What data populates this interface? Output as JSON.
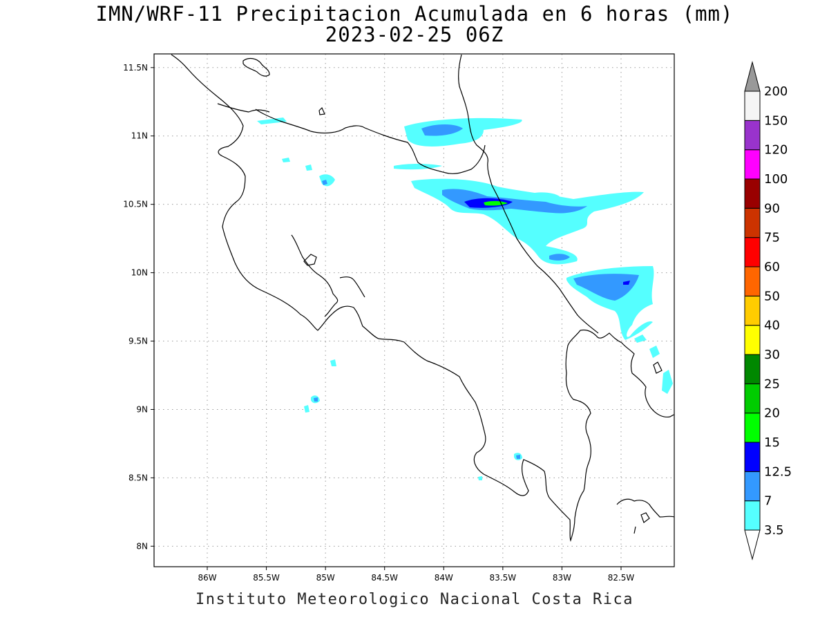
{
  "header": {
    "title": "IMN/WRF-11 Precipitacion Acumulada en 6 horas (mm)",
    "subtitle": "2023-02-25 06Z"
  },
  "footer": {
    "credit": "Instituto Meteorologico Nacional Costa Rica"
  },
  "map": {
    "lon_range": [
      -86.45,
      -82.05
    ],
    "lat_range": [
      7.85,
      11.6
    ],
    "lon_ticks": [
      {
        "value": -86.0,
        "label": "86W"
      },
      {
        "value": -85.5,
        "label": "85.5W"
      },
      {
        "value": -85.0,
        "label": "85W"
      },
      {
        "value": -84.5,
        "label": "84.5W"
      },
      {
        "value": -84.0,
        "label": "84W"
      },
      {
        "value": -83.5,
        "label": "83.5W"
      },
      {
        "value": -83.0,
        "label": "83W"
      },
      {
        "value": -82.5,
        "label": "82.5W"
      }
    ],
    "lat_ticks": [
      {
        "value": 11.5,
        "label": "11.5N"
      },
      {
        "value": 11.0,
        "label": "11N"
      },
      {
        "value": 10.5,
        "label": "10.5N"
      },
      {
        "value": 10.0,
        "label": "10N"
      },
      {
        "value": 9.5,
        "label": "9.5N"
      },
      {
        "value": 9.0,
        "label": "9N"
      },
      {
        "value": 8.5,
        "label": "8.5N"
      },
      {
        "value": 8.0,
        "label": "8N"
      }
    ],
    "grid": true,
    "grid_color": "#999999",
    "coast_color": "#000000"
  },
  "colorbar": {
    "levels": [
      "3.5",
      "7",
      "12.5",
      "15",
      "20",
      "25",
      "30",
      "40",
      "50",
      "60",
      "75",
      "90",
      "100",
      "120",
      "150",
      "200"
    ],
    "colors": [
      "#55ffff",
      "#3399ff",
      "#0000ff",
      "#00ff00",
      "#00cc00",
      "#008800",
      "#ffff00",
      "#ffcc00",
      "#ff6600",
      "#ff0000",
      "#cc3300",
      "#990000",
      "#ff00ff",
      "#9933cc",
      "#f5f5f5"
    ],
    "over_color": "#999999",
    "under_color": "#ffffff"
  }
}
